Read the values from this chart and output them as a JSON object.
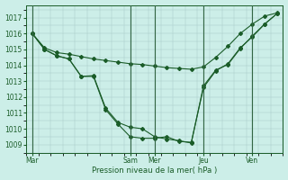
{
  "background_color": "#cceee8",
  "grid_color": "#aaccc8",
  "line_color": "#1a5c28",
  "vline_color": "#336644",
  "title": "Pression niveau de la mer( hPa )",
  "ylim": [
    1008.5,
    1017.8
  ],
  "yticks": [
    1009,
    1010,
    1011,
    1012,
    1013,
    1014,
    1015,
    1016,
    1017
  ],
  "x_day_labels": [
    "Mar",
    "Sam",
    "Mer",
    "Jeu",
    "Ven"
  ],
  "x_day_positions": [
    0,
    8,
    10,
    14,
    18
  ],
  "xlim": [
    -0.5,
    20.5
  ],
  "series1_x": [
    0,
    1,
    2,
    3,
    4,
    5,
    6,
    7,
    8,
    9,
    10,
    11,
    12,
    13,
    14,
    15,
    16,
    17,
    18,
    19,
    20
  ],
  "series1_y": [
    1016.0,
    1015.1,
    1014.8,
    1014.7,
    1014.55,
    1014.4,
    1014.3,
    1014.2,
    1014.1,
    1014.05,
    1013.95,
    1013.85,
    1013.8,
    1013.75,
    1013.9,
    1014.5,
    1015.2,
    1016.0,
    1016.6,
    1017.1,
    1017.3
  ],
  "series2_x": [
    0,
    1,
    2,
    3,
    4,
    5,
    6,
    7,
    8,
    9,
    10,
    11,
    12,
    13,
    14,
    15,
    16,
    17,
    18,
    19,
    20
  ],
  "series2_y": [
    1016.0,
    1015.0,
    1014.6,
    1014.4,
    1013.3,
    1013.3,
    1011.2,
    1010.3,
    1009.5,
    1009.4,
    1009.4,
    1009.5,
    1009.2,
    1009.15,
    1012.6,
    1013.65,
    1014.1,
    1015.1,
    1015.8,
    1016.6,
    1017.25
  ],
  "series3_x": [
    0,
    1,
    2,
    3,
    4,
    5,
    6,
    7,
    8,
    9,
    10,
    11,
    12,
    13,
    14,
    15,
    16,
    17,
    18,
    19,
    20
  ],
  "series3_y": [
    1016.0,
    1015.0,
    1014.6,
    1014.4,
    1013.3,
    1013.35,
    1011.3,
    1010.4,
    1010.1,
    1010.0,
    1009.5,
    1009.35,
    1009.25,
    1009.1,
    1012.7,
    1013.7,
    1014.05,
    1015.05,
    1015.85,
    1016.6,
    1017.25
  ],
  "title_fontsize": 6.2,
  "tick_fontsize": 5.5
}
